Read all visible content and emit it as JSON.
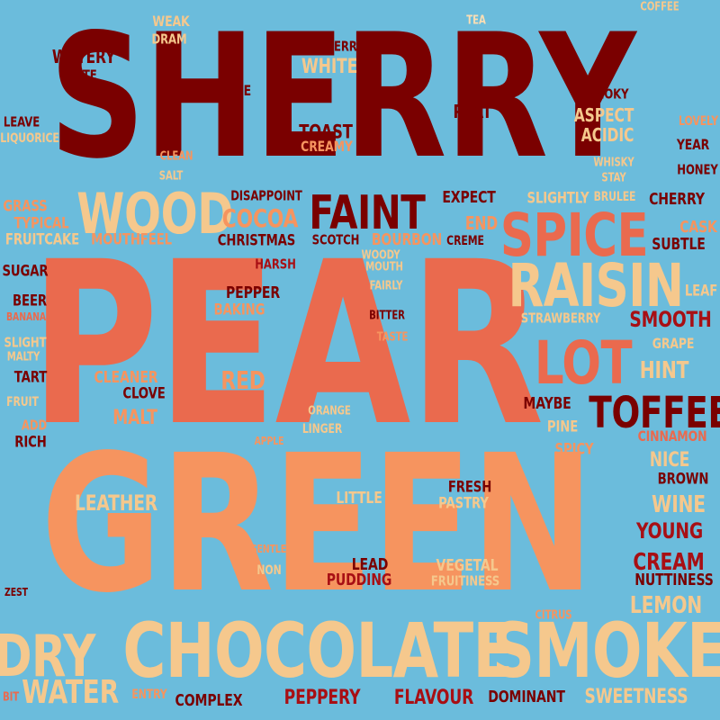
{
  "background_color": "#6bbcdc",
  "palette": {
    "dark_red": "#7a0000",
    "red": "#a80f14",
    "coral": "#ea6a4e",
    "orange": "#f6945f",
    "cream": "#f5c88d"
  },
  "words": {
    "sherry": "SHERRY",
    "pear": "PEAR",
    "green": "GREEN",
    "chocolate": "CHOCOLATE",
    "smoke": "SMOKE",
    "dry": "DRY",
    "wood": "WOOD",
    "faint": "FAINT",
    "spice": "SPICE",
    "raisin": "RAISIN",
    "lot": "LOT",
    "toffee": "TOFFEE",
    "water": "WATER",
    "weak": "WEAK",
    "dram": "DRAM",
    "tea": "TEA",
    "coffee": "COFFEE",
    "watery": "WATERY",
    "note": "NOTE",
    "raspberry": "RASPBERRY",
    "white": "WHITE",
    "pie": "PIE",
    "smoky": "SMOKY",
    "peat": "PEAT",
    "aspect": "ASPECT",
    "lovely": "LOVELY",
    "leave": "LEAVE",
    "liquorice": "LIQUORICE",
    "toast": "TOAST",
    "creamy": "CREAMY",
    "acidic": "ACIDIC",
    "year": "YEAR",
    "clean": "CLEAN",
    "whisky": "WHISKY",
    "honey": "HONEY",
    "salt": "SALT",
    "stay": "STAY",
    "grass": "GRASS",
    "typical": "TYPICAL",
    "disappoint": "DISAPPOINT",
    "expect": "EXPECT",
    "slightly": "SLIGHTLY",
    "brulee": "BRULEE",
    "cherry": "CHERRY",
    "cocoa": "COCOA",
    "end": "END",
    "cask": "CASK",
    "fruitcake": "FRUITCAKE",
    "mouthfeel": "MOUTHFEEL",
    "christmas": "CHRISTMAS",
    "scotch": "SCOTCH",
    "bourbon": "BOURBON",
    "creme": "CREME",
    "subtle": "SUBTLE",
    "woody": "WOODY",
    "mouth": "MOUTH",
    "sugar": "SUGAR",
    "harsh": "HARSH",
    "leaf": "LEAF",
    "fairly": "FAIRLY",
    "pepper": "PEPPER",
    "beer": "BEER",
    "baking": "BAKING",
    "banana": "BANANA",
    "bitter": "BITTER",
    "strawberry": "STRAWBERRY",
    "smooth": "SMOOTH",
    "slight": "SLIGHT",
    "taste": "TASTE",
    "malty": "MALTY",
    "grape": "GRAPE",
    "tart": "TART",
    "cleaner": "CLEANER",
    "red": "RED",
    "hint": "HINT",
    "clove": "CLOVE",
    "fruit": "FRUIT",
    "maybe": "MAYBE",
    "orange": "ORANGE",
    "malt": "MALT",
    "pine": "PINE",
    "add": "ADD",
    "linger": "LINGER",
    "cinnamon": "CINNAMON",
    "rich": "RICH",
    "apple": "APPLE",
    "spicy": "SPICY",
    "nice": "NICE",
    "brown": "BROWN",
    "fresh": "FRESH",
    "leather": "LEATHER",
    "little": "LITTLE",
    "pastry": "PASTRY",
    "wine": "WINE",
    "young": "YOUNG",
    "gentle": "GENTLE",
    "cream": "CREAM",
    "lead": "LEAD",
    "vegetal": "VEGETAL",
    "non": "NON",
    "pudding": "PUDDING",
    "fruitiness": "FRUITINESS",
    "nuttiness": "NUTTINESS",
    "zest": "ZEST",
    "lemon": "LEMON",
    "citrus": "CITRUS",
    "bit": "BIT",
    "entry": "ENTRY",
    "complex": "COMPLEX",
    "peppery": "PEPPERY",
    "flavour": "FLAVOUR",
    "dominant": "DOMINANT",
    "sweetness": "SWEETNESS"
  }
}
